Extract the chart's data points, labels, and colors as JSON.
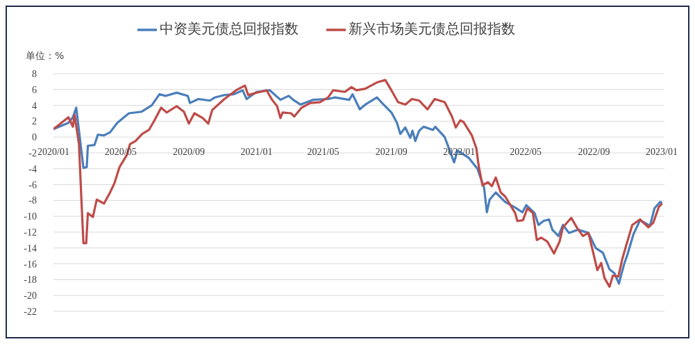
{
  "chart_data": {
    "type": "line",
    "legend": "top",
    "grid": "y",
    "marker": "none",
    "line_style": "solid",
    "annotations": [
      "单位：%"
    ],
    "xlim": [
      "2020-01-01",
      "2023-01-06"
    ],
    "xticks": [
      {
        "value": "2020-01-01",
        "label": "2020/01"
      },
      {
        "value": "2020-05-01",
        "label": "2020/05"
      },
      {
        "value": "2020-09-01",
        "label": "2020/09"
      },
      {
        "value": "2021-01-01",
        "label": "2021/01"
      },
      {
        "value": "2021-05-01",
        "label": "2021/05"
      },
      {
        "value": "2021-09-01",
        "label": "2021/09"
      },
      {
        "value": "2022-01-01",
        "label": "2022/01"
      },
      {
        "value": "2022-05-01",
        "label": "2022/05"
      },
      {
        "value": "2022-09-01",
        "label": "2022/09"
      },
      {
        "value": "2023-01-01",
        "label": "2023/01"
      }
    ],
    "ylim": [
      -22,
      8
    ],
    "yticks": [
      -22,
      -20,
      -18,
      -16,
      -14,
      -12,
      -10,
      -8,
      -6,
      -4,
      -2,
      0,
      2,
      4,
      6,
      8
    ],
    "series": [
      {
        "name": "中资美元债总回报指数",
        "color": "#4a7ebb",
        "x": [
          "2020-01-01",
          "2020-01-28",
          "2020-02-05",
          "2020-02-11",
          "2020-02-17",
          "2020-02-24",
          "2020-03-01",
          "2020-03-03",
          "2020-03-15",
          "2020-03-21",
          "2020-04-01",
          "2020-04-12",
          "2020-04-25",
          "2020-05-16",
          "2020-06-08",
          "2020-06-26",
          "2020-07-10",
          "2020-07-21",
          "2020-08-10",
          "2020-08-30",
          "2020-09-03",
          "2020-09-18",
          "2020-10-09",
          "2020-10-18",
          "2020-11-04",
          "2020-11-21",
          "2020-12-07",
          "2020-12-14",
          "2021-01-01",
          "2021-01-25",
          "2021-02-13",
          "2021-02-28",
          "2021-03-08",
          "2021-03-21",
          "2021-04-13",
          "2021-05-10",
          "2021-05-22",
          "2021-06-17",
          "2021-06-23",
          "2021-07-06",
          "2021-07-16",
          "2021-08-06",
          "2021-08-15",
          "2021-09-01",
          "2021-09-11",
          "2021-09-17",
          "2021-09-26",
          "2021-10-05",
          "2021-10-09",
          "2021-10-14",
          "2021-10-21",
          "2021-10-29",
          "2021-11-15",
          "2021-11-19",
          "2021-12-06",
          "2021-12-23",
          "2021-12-29",
          "2022-01-18",
          "2022-02-03",
          "2022-02-15",
          "2022-02-20",
          "2022-02-25",
          "2022-03-08",
          "2022-03-25",
          "2022-04-12",
          "2022-04-25",
          "2022-05-02",
          "2022-05-17",
          "2022-05-24",
          "2022-06-02",
          "2022-06-12",
          "2022-06-18",
          "2022-06-29",
          "2022-07-07",
          "2022-07-18",
          "2022-08-03",
          "2022-08-22",
          "2022-09-04",
          "2022-09-17",
          "2022-09-29",
          "2022-10-08",
          "2022-10-16",
          "2022-10-25",
          "2022-10-31",
          "2022-11-11",
          "2022-11-23",
          "2022-12-11",
          "2022-12-19",
          "2022-12-29",
          "2023-01-02"
        ],
        "values": [
          1.0,
          1.8,
          2.5,
          3.7,
          0.2,
          -3.9,
          -3.8,
          -1.1,
          -1.0,
          0.3,
          0.2,
          0.6,
          1.8,
          3.0,
          3.2,
          4.0,
          5.4,
          5.2,
          5.6,
          5.2,
          4.3,
          4.8,
          4.6,
          5.0,
          5.3,
          5.4,
          5.9,
          4.8,
          5.7,
          5.9,
          4.7,
          5.2,
          4.7,
          4.1,
          4.7,
          4.8,
          5.0,
          4.7,
          5.4,
          3.5,
          4.1,
          5.0,
          4.3,
          3.1,
          1.8,
          0.4,
          1.2,
          -0.1,
          0.8,
          -0.5,
          0.8,
          1.3,
          0.9,
          1.3,
          0.0,
          -3.2,
          -1.7,
          -2.6,
          -4.0,
          -6.4,
          -9.5,
          -7.9,
          -7.0,
          -8.2,
          -8.9,
          -9.5,
          -8.6,
          -9.6,
          -11.1,
          -10.6,
          -10.4,
          -11.7,
          -12.5,
          -11.1,
          -12.1,
          -11.7,
          -12.1,
          -14.0,
          -14.6,
          -16.7,
          -17.2,
          -18.5,
          -16.1,
          -14.9,
          -12.3,
          -10.5,
          -11.2,
          -9.0,
          -8.2,
          -8.3
        ]
      },
      {
        "name": "新兴市场美元债总回报指数",
        "color": "#be4b48",
        "x": [
          "2020-01-01",
          "2020-01-28",
          "2020-02-05",
          "2020-02-08",
          "2020-02-16",
          "2020-02-20",
          "2020-02-24",
          "2020-02-29",
          "2020-03-03",
          "2020-03-12",
          "2020-03-19",
          "2020-04-01",
          "2020-04-12",
          "2020-04-20",
          "2020-04-29",
          "2020-05-12",
          "2020-05-18",
          "2020-05-28",
          "2020-06-09",
          "2020-06-21",
          "2020-07-01",
          "2020-07-13",
          "2020-07-23",
          "2020-08-10",
          "2020-08-23",
          "2020-09-01",
          "2020-09-11",
          "2020-09-26",
          "2020-10-06",
          "2020-10-13",
          "2020-11-04",
          "2020-11-25",
          "2020-12-11",
          "2020-12-17",
          "2021-01-01",
          "2021-01-19",
          "2021-01-29",
          "2021-02-07",
          "2021-02-13",
          "2021-02-17",
          "2021-03-04",
          "2021-03-10",
          "2021-03-23",
          "2021-04-08",
          "2021-04-25",
          "2021-05-10",
          "2021-05-19",
          "2021-06-09",
          "2021-06-21",
          "2021-06-30",
          "2021-07-16",
          "2021-08-06",
          "2021-08-21",
          "2021-09-01",
          "2021-09-13",
          "2021-09-26",
          "2021-10-08",
          "2021-10-21",
          "2021-11-05",
          "2021-11-18",
          "2021-12-06",
          "2021-12-19",
          "2021-12-26",
          "2022-01-03",
          "2022-01-09",
          "2022-01-24",
          "2022-02-01",
          "2022-02-05",
          "2022-02-12",
          "2022-02-22",
          "2022-03-01",
          "2022-03-08",
          "2022-03-17",
          "2022-03-25",
          "2022-04-12",
          "2022-04-16",
          "2022-04-26",
          "2022-05-04",
          "2022-05-14",
          "2022-05-21",
          "2022-05-29",
          "2022-06-09",
          "2022-06-21",
          "2022-07-01",
          "2022-07-07",
          "2022-07-22",
          "2022-08-01",
          "2022-08-12",
          "2022-08-22",
          "2022-09-01",
          "2022-09-07",
          "2022-09-14",
          "2022-09-20",
          "2022-09-29",
          "2022-10-05",
          "2022-10-15",
          "2022-10-22",
          "2022-10-29",
          "2022-11-09",
          "2022-11-23",
          "2022-12-08",
          "2022-12-17",
          "2022-12-27",
          "2023-01-02"
        ],
        "values": [
          1.0,
          2.5,
          1.3,
          2.8,
          -0.9,
          -7.3,
          -13.4,
          -13.4,
          -9.6,
          -10.1,
          -7.9,
          -8.4,
          -7.0,
          -5.8,
          -3.8,
          -2.3,
          -0.9,
          -0.5,
          0.4,
          0.9,
          2.1,
          3.7,
          3.1,
          3.9,
          3.2,
          1.7,
          3.0,
          2.4,
          1.7,
          3.4,
          4.8,
          5.9,
          6.5,
          5.3,
          5.6,
          5.9,
          4.7,
          3.9,
          2.4,
          3.1,
          3.0,
          2.6,
          3.7,
          4.3,
          4.4,
          5.0,
          5.9,
          5.7,
          6.3,
          5.9,
          6.1,
          6.9,
          7.2,
          5.9,
          4.4,
          4.1,
          4.8,
          4.6,
          3.5,
          4.8,
          4.4,
          2.6,
          1.2,
          2.1,
          1.9,
          0.2,
          -1.4,
          -3.5,
          -6.1,
          -5.7,
          -6.2,
          -5.1,
          -7.0,
          -7.5,
          -9.6,
          -10.6,
          -10.5,
          -9.0,
          -9.6,
          -13.0,
          -12.7,
          -13.2,
          -14.7,
          -13.2,
          -11.4,
          -10.2,
          -11.4,
          -12.5,
          -12.1,
          -15.0,
          -16.8,
          -15.9,
          -17.8,
          -18.9,
          -17.5,
          -17.6,
          -15.4,
          -13.7,
          -11.1,
          -10.4,
          -11.4,
          -10.8,
          -8.8,
          -8.4
        ]
      }
    ]
  }
}
